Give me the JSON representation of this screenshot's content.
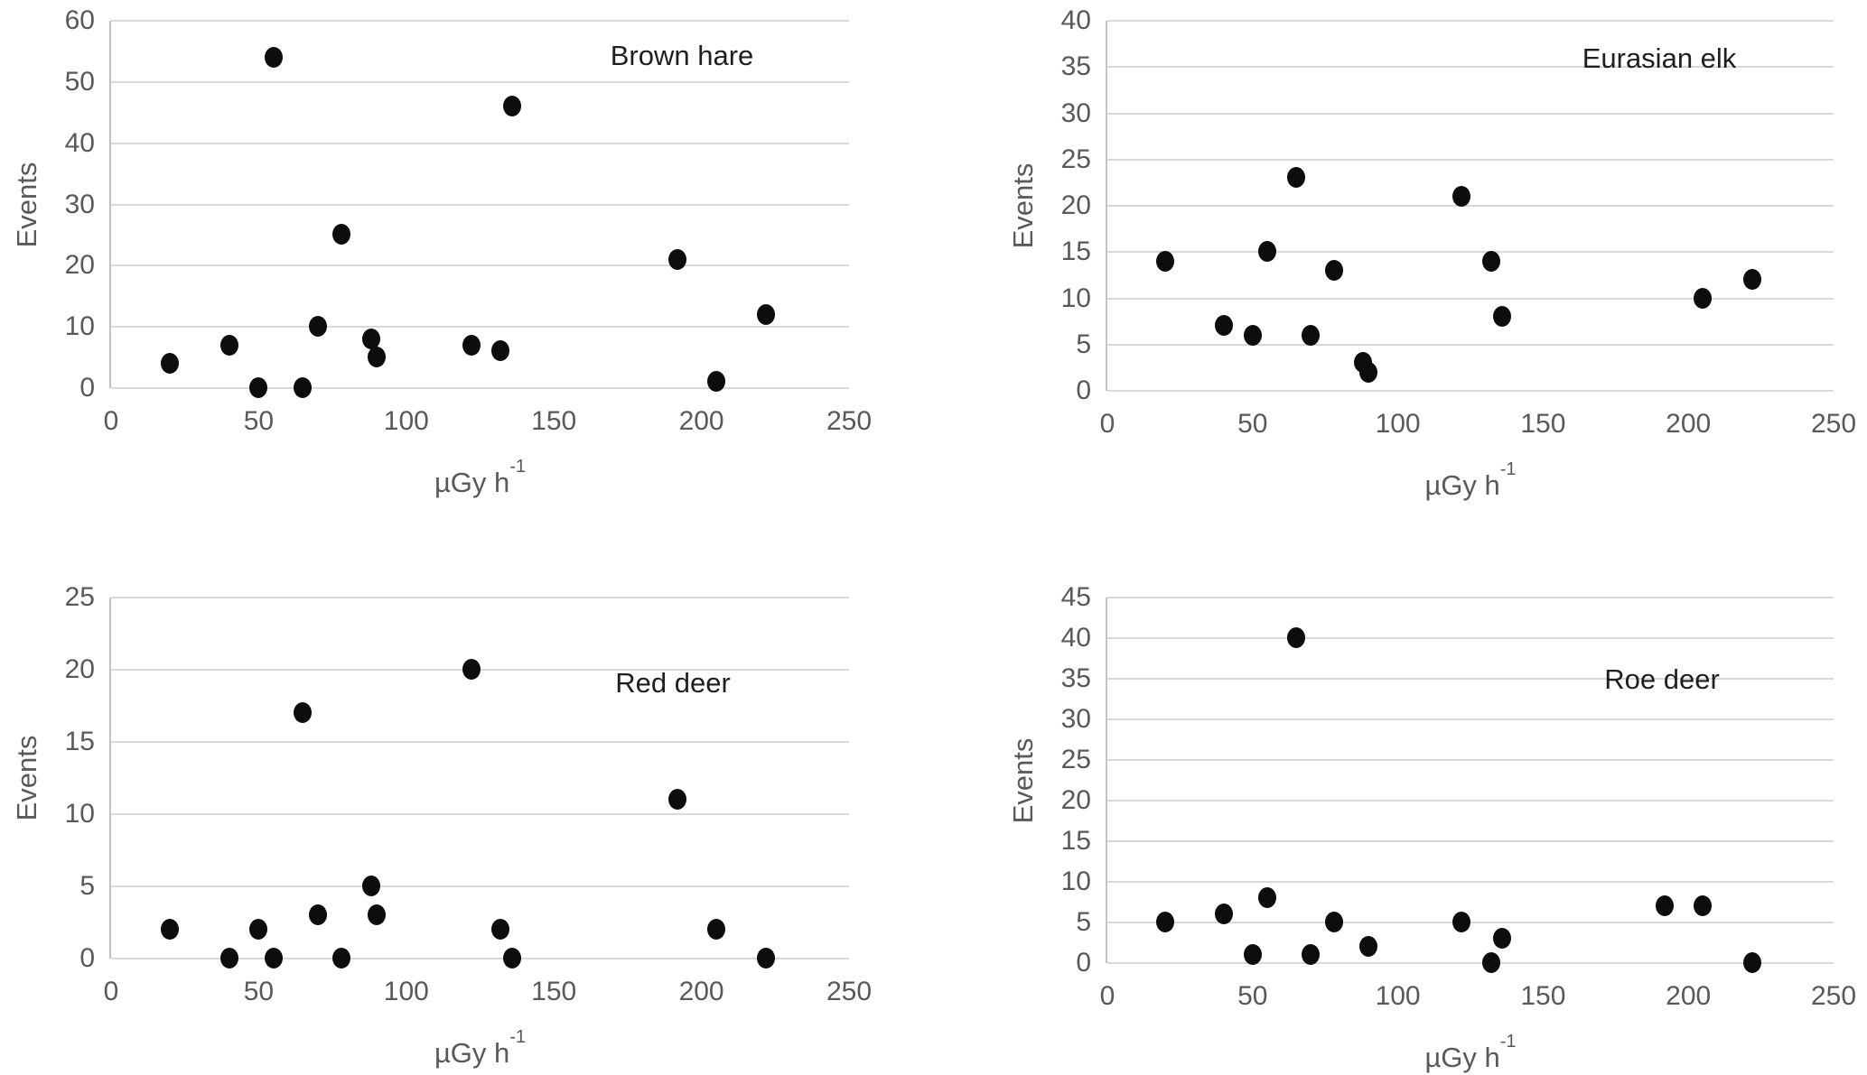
{
  "figure": {
    "background": "#ffffff",
    "layout": "2x2 grid of scatter panels",
    "styles": {
      "grid_color": "#d9d9d9",
      "axis_line_color": "#c3c3c3",
      "tick_text_color": "#595959",
      "axis_title_color": "#595959",
      "panel_title_color": "#1f1f1f",
      "marker_color": "#0d0d0d"
    }
  },
  "chart_data": [
    {
      "type": "scatter",
      "title": "Brown hare",
      "xlabel": "µGy h",
      "xlabel_sup": "-1",
      "ylabel": "Events",
      "xlim": [
        0,
        250
      ],
      "ylim": [
        0,
        60
      ],
      "xticks": [
        0,
        50,
        100,
        150,
        200,
        250
      ],
      "yticks": [
        0,
        10,
        20,
        30,
        40,
        50,
        60
      ],
      "grid": "horizontal-only",
      "legend": "none",
      "points": [
        [
          20,
          4
        ],
        [
          40,
          7
        ],
        [
          50,
          0
        ],
        [
          55,
          54
        ],
        [
          65,
          0
        ],
        [
          70,
          10
        ],
        [
          78,
          25
        ],
        [
          88,
          8
        ],
        [
          90,
          5
        ],
        [
          122,
          7
        ],
        [
          132,
          6
        ],
        [
          136,
          46
        ],
        [
          192,
          21
        ],
        [
          205,
          1
        ],
        [
          222,
          12
        ]
      ]
    },
    {
      "type": "scatter",
      "title": "Eurasian elk",
      "xlabel": "µGy h",
      "xlabel_sup": "-1",
      "ylabel": "Events",
      "xlim": [
        0,
        250
      ],
      "ylim": [
        0,
        40
      ],
      "xticks": [
        0,
        50,
        100,
        150,
        200,
        250
      ],
      "yticks": [
        0,
        5,
        10,
        15,
        20,
        25,
        30,
        35,
        40
      ],
      "grid": "horizontal-only",
      "legend": "none",
      "points": [
        [
          20,
          14
        ],
        [
          40,
          7
        ],
        [
          50,
          6
        ],
        [
          55,
          15
        ],
        [
          65,
          23
        ],
        [
          70,
          6
        ],
        [
          78,
          13
        ],
        [
          88,
          3
        ],
        [
          90,
          2
        ],
        [
          122,
          21
        ],
        [
          132,
          14
        ],
        [
          136,
          8
        ],
        [
          205,
          10
        ],
        [
          222,
          12
        ]
      ]
    },
    {
      "type": "scatter",
      "title": "Red deer",
      "xlabel": "µGy h",
      "xlabel_sup": "-1",
      "ylabel": "Events",
      "xlim": [
        0,
        250
      ],
      "ylim": [
        0,
        25
      ],
      "xticks": [
        0,
        50,
        100,
        150,
        200,
        250
      ],
      "yticks": [
        0,
        5,
        10,
        15,
        20,
        25
      ],
      "grid": "horizontal-only",
      "legend": "none",
      "points": [
        [
          20,
          2
        ],
        [
          40,
          0
        ],
        [
          50,
          2
        ],
        [
          55,
          0
        ],
        [
          65,
          17
        ],
        [
          70,
          3
        ],
        [
          78,
          0
        ],
        [
          88,
          5
        ],
        [
          90,
          3
        ],
        [
          122,
          20
        ],
        [
          132,
          2
        ],
        [
          136,
          0
        ],
        [
          192,
          11
        ],
        [
          205,
          2
        ],
        [
          222,
          0
        ]
      ]
    },
    {
      "type": "scatter",
      "title": "Roe deer",
      "xlabel": "µGy h",
      "xlabel_sup": "-1",
      "ylabel": "Events",
      "xlim": [
        0,
        250
      ],
      "ylim": [
        0,
        45
      ],
      "xticks": [
        0,
        50,
        100,
        150,
        200,
        250
      ],
      "yticks": [
        0,
        5,
        10,
        15,
        20,
        25,
        30,
        35,
        40,
        45
      ],
      "grid": "horizontal-only",
      "legend": "none",
      "points": [
        [
          20,
          5
        ],
        [
          40,
          6
        ],
        [
          50,
          1
        ],
        [
          55,
          8
        ],
        [
          65,
          40
        ],
        [
          70,
          1
        ],
        [
          78,
          5
        ],
        [
          90,
          2
        ],
        [
          122,
          5
        ],
        [
          132,
          0
        ],
        [
          136,
          3
        ],
        [
          192,
          7
        ],
        [
          205,
          7
        ],
        [
          222,
          0
        ]
      ]
    }
  ]
}
